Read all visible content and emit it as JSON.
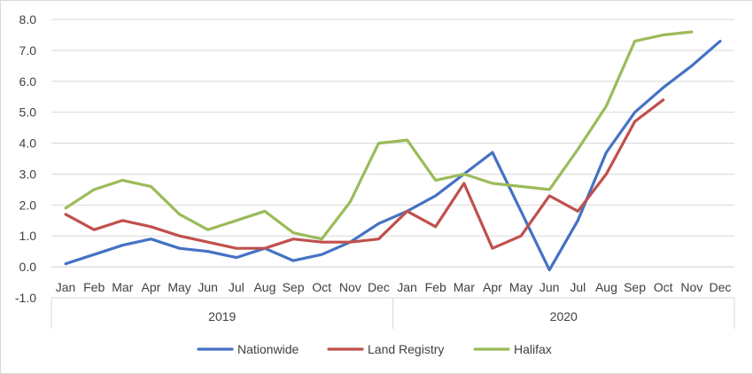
{
  "chart_data": {
    "type": "line",
    "title": "",
    "xlabel": "",
    "ylabel": "",
    "ylim": [
      -1.0,
      8.0
    ],
    "y_ticks": [
      "8.0",
      "7.0",
      "6.0",
      "5.0",
      "4.0",
      "3.0",
      "2.0",
      "1.0",
      "0.0",
      "-1.0"
    ],
    "categories": [
      "Jan",
      "Feb",
      "Mar",
      "Apr",
      "May",
      "Jun",
      "Jul",
      "Aug",
      "Sep",
      "Oct",
      "Nov",
      "Dec",
      "Jan",
      "Feb",
      "Mar",
      "Apr",
      "May",
      "Jun",
      "Jul",
      "Aug",
      "Sep",
      "Oct",
      "Nov",
      "Dec"
    ],
    "year_groups": [
      {
        "label": "2019",
        "start": 0,
        "end": 11
      },
      {
        "label": "2020",
        "start": 12,
        "end": 23
      }
    ],
    "grid": true,
    "legend_position": "bottom",
    "series": [
      {
        "name": "Nationwide",
        "color": "#4472C4",
        "values": [
          0.1,
          0.4,
          0.7,
          0.9,
          0.6,
          0.5,
          0.3,
          0.6,
          0.2,
          0.4,
          0.8,
          1.4,
          1.8,
          2.3,
          3.0,
          3.7,
          1.8,
          -0.1,
          1.5,
          3.7,
          5.0,
          5.8,
          6.5,
          7.3
        ]
      },
      {
        "name": "Land Registry",
        "color": "#C0504D",
        "values": [
          1.7,
          1.2,
          1.5,
          1.3,
          1.0,
          0.8,
          0.6,
          0.6,
          0.9,
          0.8,
          0.8,
          0.9,
          1.8,
          1.3,
          2.7,
          0.6,
          1.0,
          2.3,
          1.8,
          3.0,
          4.7,
          5.4,
          null,
          null
        ]
      },
      {
        "name": "Halifax",
        "color": "#9BBB59",
        "values": [
          1.9,
          2.5,
          2.8,
          2.6,
          1.7,
          1.2,
          1.5,
          1.8,
          1.1,
          0.9,
          2.1,
          4.0,
          4.1,
          2.8,
          3.0,
          2.7,
          2.6,
          2.5,
          3.8,
          5.2,
          7.3,
          7.5,
          7.6,
          null
        ]
      }
    ]
  }
}
